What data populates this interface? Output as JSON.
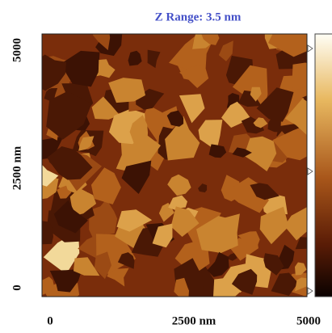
{
  "title": "Z Range: 3.5  nm",
  "y_axis": {
    "labels": [
      "5000",
      "2500 nm",
      "0"
    ]
  },
  "x_axis": {
    "labels": [
      "0",
      "2500 nm",
      "5000"
    ]
  }
}
